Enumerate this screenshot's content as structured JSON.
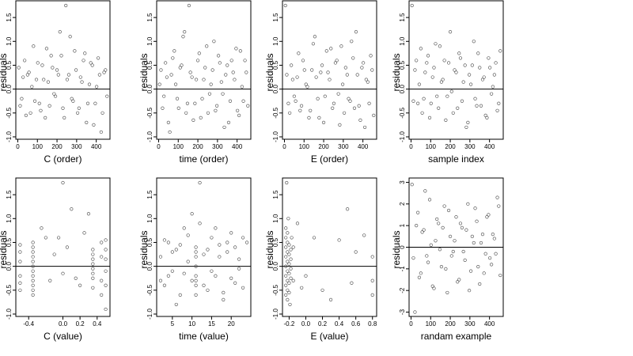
{
  "chart_data": [
    {
      "type": "scatter",
      "xlabel": "C (order)",
      "ylabel": "residuals",
      "xlim": [
        -10,
        470
      ],
      "ylim": [
        -1.05,
        1.85
      ],
      "xticks": [
        0,
        100,
        200,
        300,
        400
      ],
      "xtick_labels": [
        "0",
        "100",
        "200",
        "300",
        "400"
      ],
      "yticks": [
        -1.0,
        -0.5,
        0.0,
        0.5,
        1.0,
        1.5
      ],
      "ytick_labels": [
        "-1.0",
        "-0.5",
        "0.0",
        "0.5",
        "1.0",
        "1.5"
      ],
      "hline": 0,
      "x": [
        5,
        20,
        35,
        50,
        65,
        80,
        95,
        110,
        125,
        140,
        155,
        170,
        185,
        200,
        215,
        230,
        245,
        260,
        275,
        290,
        305,
        320,
        335,
        350,
        365,
        380,
        395,
        410,
        425,
        440,
        455,
        12,
        27,
        42,
        57,
        72,
        87,
        102,
        117,
        132,
        147,
        162,
        177,
        192,
        207,
        222,
        237,
        252,
        267,
        282,
        297,
        312,
        327,
        342,
        357,
        372,
        387,
        402,
        417,
        432,
        447
      ],
      "y": [
        0.45,
        -0.2,
        0.6,
        0.3,
        -0.5,
        0.9,
        0.2,
        -0.3,
        0.5,
        -0.6,
        0.15,
        0.7,
        -0.1,
        0.4,
        1.2,
        -0.4,
        1.75,
        0.3,
        -0.2,
        0.8,
        -0.5,
        0.25,
        0.6,
        -0.7,
        0.1,
        0.5,
        -0.3,
        0.65,
        -0.9,
        0.35,
        -0.15,
        -0.35,
        0.25,
        -0.55,
        0.35,
        0.05,
        -0.25,
        0.55,
        -0.45,
        0.2,
        0.85,
        -0.35,
        0.45,
        -0.15,
        0.3,
        0.7,
        -0.6,
        0.2,
        1.1,
        -0.25,
        0.4,
        -0.4,
        0.15,
        0.75,
        -0.3,
        0.55,
        -0.75,
        0.05,
        0.3,
        -0.5,
        0.4
      ]
    },
    {
      "type": "scatter",
      "xlabel": "time (order)",
      "ylabel": "residuals",
      "xlim": [
        -10,
        470
      ],
      "ylim": [
        -1.05,
        1.85
      ],
      "xticks": [
        0,
        100,
        200,
        300,
        400
      ],
      "xtick_labels": [
        "0",
        "100",
        "200",
        "300",
        "400"
      ],
      "yticks": [
        -1.0,
        -0.5,
        0.0,
        0.5,
        1.0,
        1.5
      ],
      "ytick_labels": [
        "-1.0",
        "-0.5",
        "0.0",
        "0.5",
        "1.0",
        "1.5"
      ],
      "hline": 0,
      "x": [
        5,
        20,
        35,
        50,
        65,
        80,
        95,
        110,
        125,
        140,
        155,
        170,
        185,
        200,
        215,
        230,
        245,
        260,
        275,
        290,
        305,
        320,
        335,
        350,
        365,
        380,
        395,
        410,
        425,
        440,
        455,
        12,
        27,
        42,
        57,
        72,
        87,
        102,
        117,
        132,
        147,
        162,
        177,
        192,
        207,
        222,
        237,
        252,
        267,
        282,
        297,
        312,
        327,
        342,
        357,
        372,
        387,
        402,
        417,
        432,
        447
      ],
      "y": [
        0.1,
        -0.4,
        0.55,
        -0.7,
        0.3,
        0.8,
        -0.2,
        0.45,
        1.1,
        -0.5,
        1.75,
        0.25,
        -0.3,
        0.6,
        -0.6,
        0.2,
        0.9,
        -0.1,
        0.4,
        -0.45,
        0.7,
        0.15,
        -0.8,
        0.5,
        -0.25,
        0.35,
        0.85,
        -0.55,
        0.05,
        0.6,
        -0.35,
        0.4,
        -0.15,
        0.25,
        -0.9,
        0.65,
        0.1,
        -0.4,
        0.5,
        1.2,
        -0.3,
        0.35,
        -0.65,
        0.2,
        0.75,
        -0.2,
        0.45,
        -0.5,
        0.1,
        1.0,
        -0.35,
        0.55,
        -0.1,
        0.3,
        -0.7,
        0.6,
        0.2,
        -0.45,
        0.8,
        -0.25,
        0.35
      ]
    },
    {
      "type": "scatter",
      "xlabel": "E (order)",
      "ylabel": "residuals",
      "xlim": [
        -10,
        470
      ],
      "ylim": [
        -1.05,
        1.85
      ],
      "xticks": [
        0,
        100,
        200,
        300,
        400
      ],
      "xtick_labels": [
        "0",
        "100",
        "200",
        "300",
        "400"
      ],
      "yticks": [
        -1.0,
        -0.5,
        0.0,
        0.5,
        1.0,
        1.5
      ],
      "ytick_labels": [
        "-1.0",
        "-0.5",
        "0.0",
        "0.5",
        "1.0",
        "1.5"
      ],
      "hline": 0,
      "x": [
        5,
        20,
        35,
        50,
        65,
        80,
        95,
        110,
        125,
        140,
        155,
        170,
        185,
        200,
        215,
        230,
        245,
        260,
        275,
        290,
        305,
        320,
        335,
        350,
        365,
        380,
        395,
        410,
        425,
        440,
        455,
        12,
        27,
        42,
        57,
        72,
        87,
        102,
        117,
        132,
        147,
        162,
        177,
        192,
        207,
        222,
        237,
        252,
        267,
        282,
        297,
        312,
        327,
        342,
        357,
        372,
        387,
        402,
        417,
        432,
        447
      ],
      "y": [
        1.75,
        -0.3,
        0.5,
        -0.15,
        0.25,
        -0.45,
        0.6,
        0.1,
        -0.6,
        0.4,
        1.1,
        -0.2,
        0.35,
        -0.7,
        0.8,
        0.2,
        -0.4,
        0.55,
        -0.1,
        0.9,
        -0.5,
        0.3,
        -0.25,
        0.65,
        1.2,
        -0.35,
        0.45,
        -0.8,
        0.15,
        0.7,
        -0.55,
        0.3,
        -0.5,
        0.2,
        -0.25,
        0.75,
        -0.35,
        0.4,
        0.05,
        -0.45,
        0.95,
        0.25,
        -0.6,
        0.5,
        -0.15,
        0.35,
        0.85,
        -0.3,
        0.6,
        -0.75,
        0.1,
        0.45,
        -0.2,
        1.0,
        -0.4,
        0.3,
        -0.65,
        0.55,
        0.2,
        -0.3,
        0.4
      ]
    },
    {
      "type": "scatter",
      "xlabel": "sample index",
      "ylabel": "residuals",
      "xlim": [
        -10,
        470
      ],
      "ylim": [
        -1.05,
        1.85
      ],
      "xticks": [
        0,
        100,
        200,
        300,
        400
      ],
      "xtick_labels": [
        "0",
        "100",
        "200",
        "300",
        "400"
      ],
      "yticks": [
        -1.0,
        -0.5,
        0.0,
        0.5,
        1.0,
        1.5
      ],
      "ytick_labels": [
        "-1.0",
        "-0.5",
        "0.0",
        "0.5",
        "1.0",
        "1.5"
      ],
      "hline": 0,
      "x": [
        5,
        20,
        35,
        50,
        65,
        80,
        95,
        110,
        125,
        140,
        155,
        170,
        185,
        200,
        215,
        230,
        245,
        260,
        275,
        290,
        305,
        320,
        335,
        350,
        365,
        380,
        395,
        410,
        425,
        440,
        455,
        12,
        27,
        42,
        57,
        72,
        87,
        102,
        117,
        132,
        147,
        162,
        177,
        192,
        207,
        222,
        237,
        252,
        267,
        282,
        297,
        312,
        327,
        342,
        357,
        372,
        387,
        402,
        417,
        432,
        447
      ],
      "y": [
        1.75,
        0.4,
        -0.3,
        0.85,
        -0.2,
        0.55,
        -0.6,
        0.25,
        0.95,
        -0.4,
        0.15,
        0.6,
        -0.15,
        1.2,
        -0.5,
        0.35,
        0.75,
        -0.25,
        0.5,
        -0.7,
        0.1,
        1.0,
        -0.35,
        0.45,
        0.2,
        -0.55,
        0.65,
        -0.1,
        0.3,
        -0.45,
        0.8,
        -0.25,
        0.6,
        0.1,
        -0.5,
        0.35,
        0.7,
        -0.3,
        0.45,
        -0.15,
        0.9,
        0.2,
        -0.65,
        0.55,
        -0.05,
        0.4,
        -0.4,
        0.65,
        0.15,
        -0.8,
        0.3,
        0.5,
        -0.2,
        0.75,
        -0.35,
        0.25,
        -0.6,
        0.45,
        0.05,
        0.55,
        -0.3
      ]
    },
    {
      "type": "scatter",
      "xlabel": "C (value)",
      "ylabel": "residuals",
      "xlim": [
        -0.55,
        0.55
      ],
      "ylim": [
        -1.05,
        1.85
      ],
      "xticks": [
        -0.4,
        0.0,
        0.2,
        0.4
      ],
      "xtick_labels": [
        "-0.4",
        "0.0",
        "0.2",
        "0.4"
      ],
      "yticks": [
        -1.0,
        -0.5,
        0.0,
        0.5,
        1.0,
        1.5
      ],
      "ytick_labels": [
        "-1.0",
        "-0.5",
        "0.0",
        "0.5",
        "1.0",
        "1.5"
      ],
      "hline": 0,
      "x": [
        -0.5,
        -0.5,
        -0.5,
        -0.5,
        -0.5,
        -0.5,
        -0.35,
        -0.35,
        -0.35,
        -0.35,
        -0.35,
        -0.35,
        -0.35,
        -0.35,
        -0.35,
        -0.35,
        -0.35,
        -0.35,
        -0.2,
        -0.15,
        -0.1,
        0.0,
        0.0,
        0.05,
        0.1,
        0.2,
        0.25,
        0.3,
        0.35,
        0.35,
        0.35,
        0.35,
        0.35,
        0.35,
        0.35,
        0.35,
        0.45,
        0.45,
        0.45,
        0.45,
        0.5,
        0.5,
        0.5,
        0.5,
        0.5,
        0.5,
        -0.25,
        -0.05,
        0.15
      ],
      "y": [
        0.3,
        -0.2,
        0.1,
        -0.5,
        0.45,
        -0.35,
        0.4,
        0.2,
        0.0,
        -0.2,
        -0.4,
        -0.6,
        0.3,
        0.1,
        -0.1,
        -0.3,
        -0.5,
        0.5,
        0.6,
        -0.3,
        0.25,
        1.75,
        -0.15,
        0.4,
        1.2,
        -0.4,
        0.7,
        1.1,
        0.35,
        0.15,
        -0.05,
        -0.25,
        -0.45,
        0.25,
        -0.15,
        0.05,
        0.5,
        -0.3,
        0.2,
        -0.6,
        0.35,
        -0.1,
        0.15,
        -0.4,
        0.55,
        -0.9,
        0.8,
        0.6,
        -0.25
      ]
    },
    {
      "type": "scatter",
      "xlabel": "time (value)",
      "ylabel": "residuals",
      "xlim": [
        1,
        25
      ],
      "ylim": [
        -1.05,
        1.85
      ],
      "xticks": [
        5,
        10,
        15,
        20
      ],
      "xtick_labels": [
        "5",
        "10",
        "15",
        "20"
      ],
      "yticks": [
        -1.0,
        -0.5,
        0.0,
        0.5,
        1.0,
        1.5
      ],
      "ytick_labels": [
        "-1.0",
        "-0.5",
        "0.0",
        "0.5",
        "1.0",
        "1.5"
      ],
      "hline": 0,
      "x": [
        2,
        3,
        4,
        5,
        6,
        7,
        8,
        9,
        10,
        11,
        11,
        11,
        11,
        11,
        11,
        11,
        11,
        12,
        13,
        14,
        15,
        16,
        17,
        18,
        19,
        20,
        21,
        22,
        23,
        24,
        2,
        3,
        4,
        5,
        6,
        7,
        8,
        9,
        10,
        12,
        13,
        14,
        15,
        16,
        17,
        18,
        19,
        20,
        21,
        22,
        23
      ],
      "y": [
        0.2,
        -0.4,
        0.5,
        -0.1,
        0.35,
        -0.6,
        0.8,
        0.1,
        1.1,
        0.4,
        0.2,
        0.0,
        -0.2,
        -0.4,
        -0.6,
        0.3,
        -0.3,
        1.75,
        0.25,
        -0.5,
        0.6,
        -0.2,
        0.45,
        -0.7,
        0.3,
        0.7,
        -0.35,
        0.15,
        -0.45,
        0.5,
        -0.3,
        0.55,
        -0.2,
        0.3,
        -0.8,
        0.45,
        -0.15,
        0.65,
        -0.3,
        0.9,
        -0.4,
        0.35,
        -0.1,
        0.8,
        0.2,
        -0.55,
        0.5,
        -0.25,
        0.4,
        -0.05,
        0.6
      ]
    },
    {
      "type": "scatter",
      "xlabel": "E (value)",
      "ylabel": "residuals",
      "xlim": [
        -0.28,
        0.85
      ],
      "ylim": [
        -1.05,
        1.85
      ],
      "xticks": [
        -0.2,
        0.0,
        0.2,
        0.4,
        0.6,
        0.8
      ],
      "xtick_labels": [
        "-0.2",
        "0.0",
        "0.2",
        "0.4",
        "0.6",
        "0.8"
      ],
      "yticks": [
        -1.0,
        -0.5,
        0.0,
        0.5,
        1.0,
        1.5
      ],
      "ytick_labels": [
        "-1.0",
        "-0.5",
        "0.0",
        "0.5",
        "1.0",
        "1.5"
      ],
      "hline": 0,
      "x": [
        -0.24,
        -0.24,
        -0.24,
        -0.24,
        -0.24,
        -0.24,
        -0.24,
        -0.24,
        -0.22,
        -0.22,
        -0.22,
        -0.22,
        -0.22,
        -0.22,
        -0.22,
        -0.22,
        -0.2,
        -0.2,
        -0.2,
        -0.2,
        -0.2,
        -0.2,
        -0.18,
        -0.18,
        -0.18,
        -0.18,
        -0.15,
        -0.15,
        -0.1,
        -0.05,
        0.0,
        0.1,
        0.2,
        0.3,
        0.4,
        0.5,
        0.55,
        0.6,
        0.7,
        0.8,
        0.8,
        0.8,
        -0.23,
        -0.21,
        -0.19,
        -0.17
      ],
      "y": [
        0.6,
        0.4,
        0.2,
        0.0,
        -0.2,
        -0.4,
        -0.6,
        0.8,
        0.5,
        0.3,
        0.1,
        -0.1,
        -0.3,
        -0.5,
        0.7,
        -0.7,
        0.45,
        0.25,
        0.05,
        -0.15,
        -0.35,
        -0.55,
        0.35,
        0.15,
        -0.05,
        -0.25,
        0.4,
        -0.3,
        0.9,
        -0.45,
        -0.2,
        0.6,
        -0.5,
        -0.7,
        0.55,
        1.2,
        -0.35,
        0.3,
        0.65,
        0.2,
        -0.3,
        -0.6,
        1.75,
        1.0,
        -0.8,
        0.6
      ]
    },
    {
      "type": "scatter",
      "xlabel": "randam example",
      "ylabel": "residuals",
      "xlim": [
        -10,
        470
      ],
      "ylim": [
        -3.2,
        3.2
      ],
      "xticks": [
        0,
        100,
        200,
        300,
        400
      ],
      "xtick_labels": [
        "0",
        "100",
        "200",
        "300",
        "400"
      ],
      "yticks": [
        -3,
        -2,
        -1,
        0,
        1,
        2,
        3
      ],
      "ytick_labels": [
        "-3",
        "-2",
        "-1",
        "0",
        "1",
        "2",
        "3"
      ],
      "hline": 0,
      "x": [
        5,
        20,
        35,
        50,
        65,
        80,
        95,
        110,
        125,
        140,
        155,
        170,
        185,
        200,
        215,
        230,
        245,
        260,
        275,
        290,
        305,
        320,
        335,
        350,
        365,
        380,
        395,
        410,
        425,
        440,
        455,
        12,
        27,
        42,
        57,
        72,
        87,
        102,
        117,
        132,
        147,
        162,
        177,
        192,
        207,
        222,
        237,
        252,
        267,
        282,
        297,
        312,
        327,
        342,
        357,
        372,
        387,
        402,
        417,
        432,
        447
      ],
      "y": [
        2.9,
        -3.0,
        1.6,
        -1.2,
        0.8,
        -0.4,
        2.2,
        -1.8,
        0.3,
        1.1,
        -0.9,
        1.9,
        -2.1,
        0.5,
        -0.2,
        1.4,
        -1.5,
        0.9,
        -0.6,
        2.0,
        -1.1,
        0.2,
        1.2,
        -1.7,
        0.6,
        -0.3,
        1.5,
        -0.8,
        0.4,
        2.3,
        -1.3,
        -0.5,
        1.0,
        -1.4,
        0.7,
        2.6,
        -0.7,
        0.1,
        -1.9,
        1.3,
        -0.1,
        0.9,
        -1.0,
        1.7,
        -0.4,
        0.3,
        -1.6,
        1.1,
        -0.2,
        0.8,
        -2.0,
        0.5,
        1.8,
        -0.9,
        0.2,
        -1.2,
        1.4,
        -0.5,
        0.6,
        -0.3,
        1.9
      ]
    }
  ]
}
